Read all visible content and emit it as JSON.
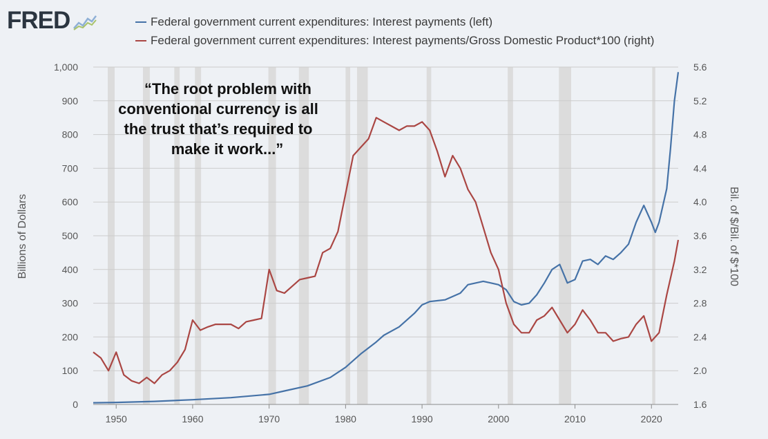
{
  "header": {
    "logo_text": "FRED",
    "logo_icon": "line-chart-icon"
  },
  "annotation": {
    "lines": [
      "“The root problem with",
      "conventional currency is all",
      "the trust that’s required to",
      "make it work...”"
    ]
  },
  "colors": {
    "series_left": "#4572a7",
    "series_right": "#aa4643",
    "recession_band": "#dcdcdc",
    "gridline": "#cccccc",
    "background": "#eef1f5"
  },
  "chart_data": {
    "type": "line",
    "grid": true,
    "legend_position": "top",
    "xlim": [
      1947,
      2023.5
    ],
    "x_ticks": [
      1950,
      1960,
      1970,
      1980,
      1990,
      2000,
      2010,
      2020
    ],
    "y_left": {
      "label": "Billions of Dollars",
      "lim": [
        0,
        1000
      ],
      "ticks": [
        0,
        100,
        200,
        300,
        400,
        500,
        600,
        700,
        800,
        900,
        1000
      ],
      "tick_labels": [
        "0",
        "100",
        "200",
        "300",
        "400",
        "500",
        "600",
        "700",
        "800",
        "900",
        "1,000"
      ]
    },
    "y_right": {
      "label": "Bil. of $/Bil. of $*100",
      "lim": [
        1.6,
        5.6
      ],
      "ticks": [
        1.6,
        2.0,
        2.4,
        2.8,
        3.2,
        3.6,
        4.0,
        4.4,
        4.8,
        5.2,
        5.6
      ],
      "tick_labels": [
        "1.6",
        "2.0",
        "2.4",
        "2.8",
        "3.2",
        "3.6",
        "4.0",
        "4.4",
        "4.8",
        "5.2",
        "5.6"
      ]
    },
    "recessions": [
      [
        1948.9,
        1949.8
      ],
      [
        1953.5,
        1954.4
      ],
      [
        1957.6,
        1958.3
      ],
      [
        1960.3,
        1961.1
      ],
      [
        1969.9,
        1970.9
      ],
      [
        1973.9,
        1975.2
      ],
      [
        1980.0,
        1980.6
      ],
      [
        1981.5,
        1982.9
      ],
      [
        1990.6,
        1991.2
      ],
      [
        2001.2,
        2001.9
      ],
      [
        2007.9,
        2009.5
      ],
      [
        2020.1,
        2020.5
      ]
    ],
    "series": [
      {
        "name": "Federal government current expenditures: Interest payments (left)",
        "axis": "left",
        "x": [
          1947,
          1950,
          1955,
          1960,
          1965,
          1970,
          1972,
          1975,
          1978,
          1980,
          1982,
          1984,
          1985,
          1987,
          1989,
          1990,
          1991,
          1993,
          1995,
          1996,
          1998,
          1999,
          2000,
          2001,
          2002,
          2003,
          2004,
          2005,
          2006,
          2007,
          2008,
          2009,
          2010,
          2011,
          2012,
          2013,
          2014,
          2015,
          2016,
          2017,
          2018,
          2019,
          2020,
          2020.5,
          2021,
          2022,
          2022.5,
          2023,
          2023.5
        ],
        "values": [
          5,
          6,
          9,
          14,
          20,
          30,
          40,
          55,
          80,
          110,
          150,
          185,
          205,
          230,
          270,
          295,
          305,
          310,
          330,
          355,
          365,
          360,
          355,
          340,
          305,
          295,
          300,
          325,
          360,
          400,
          415,
          360,
          370,
          425,
          430,
          415,
          440,
          430,
          450,
          475,
          540,
          590,
          540,
          510,
          540,
          640,
          760,
          900,
          985
        ]
      },
      {
        "name": "Federal government current expenditures: Interest payments/Gross Domestic Product*100 (right)",
        "axis": "right",
        "x": [
          1947,
          1948,
          1949,
          1950,
          1951,
          1952,
          1953,
          1954,
          1955,
          1956,
          1957,
          1958,
          1959,
          1960,
          1961,
          1962,
          1963,
          1964,
          1965,
          1966,
          1967,
          1968,
          1969,
          1970,
          1971,
          1972,
          1973,
          1974,
          1975,
          1976,
          1977,
          1978,
          1979,
          1980,
          1981,
          1982,
          1983,
          1984,
          1985,
          1986,
          1987,
          1988,
          1989,
          1990,
          1991,
          1992,
          1993,
          1994,
          1995,
          1996,
          1997,
          1998,
          1999,
          2000,
          2001,
          2002,
          2003,
          2004,
          2005,
          2006,
          2007,
          2008,
          2009,
          2010,
          2011,
          2012,
          2013,
          2014,
          2015,
          2016,
          2017,
          2018,
          2019,
          2020,
          2021,
          2022,
          2023,
          2023.5
        ],
        "values": [
          2.22,
          2.15,
          2.0,
          2.22,
          1.95,
          1.88,
          1.85,
          1.92,
          1.85,
          1.95,
          2.0,
          2.1,
          2.25,
          2.6,
          2.48,
          2.52,
          2.55,
          2.55,
          2.55,
          2.5,
          2.58,
          2.6,
          2.62,
          3.2,
          2.95,
          2.92,
          3.0,
          3.08,
          3.1,
          3.12,
          3.4,
          3.45,
          3.65,
          4.1,
          4.55,
          4.65,
          4.75,
          5.0,
          4.95,
          4.9,
          4.85,
          4.9,
          4.9,
          4.95,
          4.85,
          4.6,
          4.3,
          4.55,
          4.4,
          4.15,
          4.0,
          3.7,
          3.4,
          3.2,
          2.8,
          2.55,
          2.45,
          2.45,
          2.6,
          2.65,
          2.75,
          2.6,
          2.45,
          2.55,
          2.72,
          2.6,
          2.45,
          2.45,
          2.35,
          2.38,
          2.4,
          2.55,
          2.65,
          2.35,
          2.45,
          2.9,
          3.3,
          3.55
        ]
      }
    ]
  }
}
